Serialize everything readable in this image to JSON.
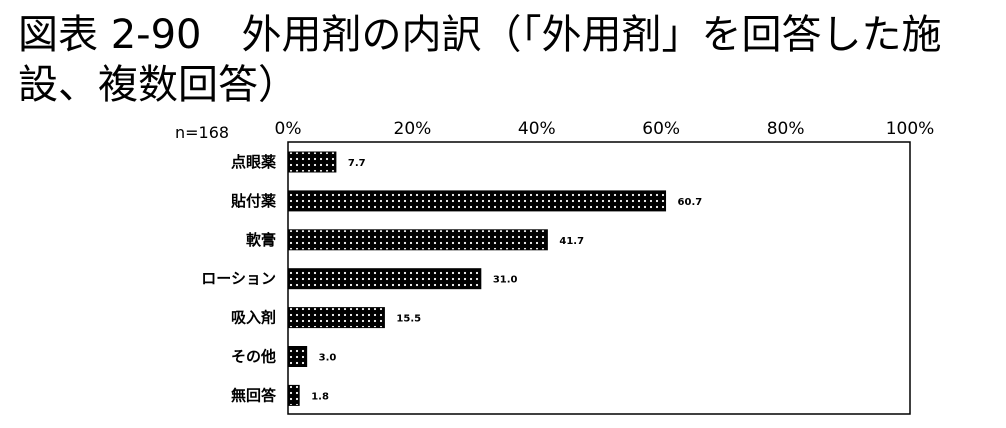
{
  "title": "図表 2-90　外用剤の内訳（「外用剤」を回答した施設、複数回答）",
  "chart_data": {
    "type": "bar",
    "orientation": "horizontal",
    "n_label": "n=168",
    "categories": [
      "点眼薬",
      "貼付薬",
      "軟膏",
      "ローション",
      "吸入剤",
      "その他",
      "無回答"
    ],
    "values": [
      7.7,
      60.7,
      41.7,
      31.0,
      15.5,
      3.0,
      1.8
    ],
    "value_labels": [
      "7.7",
      "60.7",
      "41.7",
      "31.0",
      "15.5",
      "3.0",
      "1.8"
    ],
    "xlim": [
      0,
      100
    ],
    "ticks": [
      0,
      20,
      40,
      60,
      80,
      100
    ],
    "tick_labels": [
      "0%",
      "20%",
      "40%",
      "60%",
      "80%",
      "100%"
    ],
    "grid": false,
    "bar_pattern": "black-with-white-dots"
  }
}
